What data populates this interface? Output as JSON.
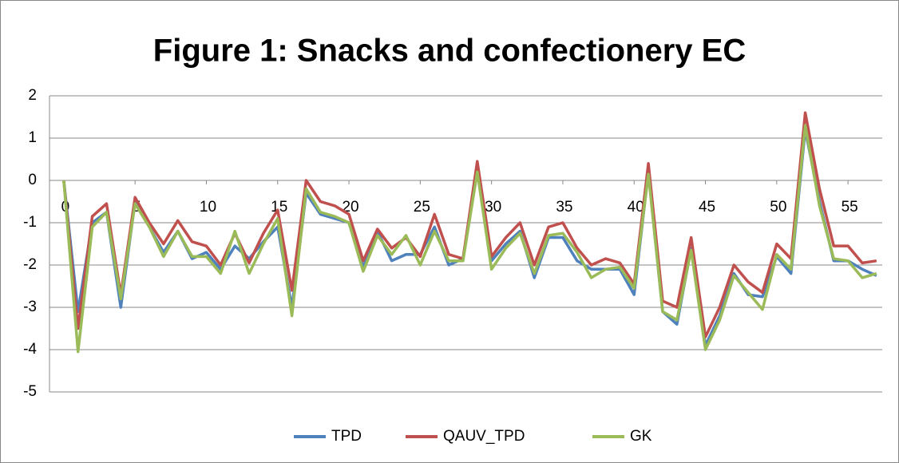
{
  "chart_data": {
    "type": "line",
    "title": "Figure 1: Snacks and confectionery EC",
    "x": [
      0,
      1,
      2,
      3,
      4,
      5,
      6,
      7,
      8,
      9,
      10,
      11,
      12,
      13,
      14,
      15,
      16,
      17,
      18,
      19,
      20,
      21,
      22,
      23,
      24,
      25,
      26,
      27,
      28,
      29,
      30,
      31,
      32,
      33,
      34,
      35,
      36,
      37,
      38,
      39,
      40,
      41,
      42,
      43,
      44,
      45,
      46,
      47,
      48,
      49,
      50,
      51,
      52,
      53,
      54,
      55,
      56,
      57
    ],
    "series": [
      {
        "name": "TPD",
        "color": "#4f81bd",
        "values": [
          0,
          -3.1,
          -1.0,
          -0.75,
          -3.0,
          -0.5,
          -1.1,
          -1.7,
          -1.2,
          -1.85,
          -1.7,
          -2.1,
          -1.55,
          -1.85,
          -1.45,
          -1.1,
          -3.0,
          -0.3,
          -0.8,
          -0.9,
          -1.0,
          -2.05,
          -1.2,
          -1.9,
          -1.75,
          -1.75,
          -1.1,
          -2.0,
          -1.85,
          0.3,
          -1.9,
          -1.5,
          -1.2,
          -2.3,
          -1.35,
          -1.35,
          -1.9,
          -2.1,
          -2.1,
          -2.1,
          -2.7,
          0.2,
          -3.1,
          -3.4,
          -1.6,
          -3.9,
          -3.2,
          -2.2,
          -2.7,
          -2.75,
          -1.8,
          -2.2,
          1.2,
          -0.5,
          -1.9,
          -1.9,
          -2.1,
          -2.25
        ]
      },
      {
        "name": "QAUV_TPD",
        "color": "#c0504d",
        "values": [
          0,
          -3.5,
          -0.85,
          -0.55,
          -2.7,
          -0.4,
          -1.0,
          -1.5,
          -0.95,
          -1.45,
          -1.55,
          -2.0,
          -1.25,
          -1.95,
          -1.25,
          -0.7,
          -2.6,
          0,
          -0.5,
          -0.6,
          -0.8,
          -1.9,
          -1.15,
          -1.6,
          -1.35,
          -1.8,
          -0.8,
          -1.75,
          -1.85,
          0.45,
          -1.8,
          -1.35,
          -1.0,
          -2.0,
          -1.1,
          -1.0,
          -1.6,
          -2.0,
          -1.85,
          -1.95,
          -2.45,
          0.4,
          -2.85,
          -3.0,
          -1.35,
          -3.7,
          -3.0,
          -2.0,
          -2.4,
          -2.65,
          -1.5,
          -1.85,
          1.6,
          -0.2,
          -1.55,
          -1.55,
          -1.95,
          -1.9
        ]
      },
      {
        "name": "GK",
        "color": "#9bbb59",
        "values": [
          0,
          -4.05,
          -1.1,
          -0.75,
          -2.8,
          -0.55,
          -1.1,
          -1.8,
          -1.2,
          -1.8,
          -1.8,
          -2.2,
          -1.2,
          -2.2,
          -1.5,
          -0.9,
          -3.2,
          -0.2,
          -0.75,
          -0.85,
          -1.0,
          -2.15,
          -1.3,
          -1.75,
          -1.3,
          -2.0,
          -1.2,
          -1.9,
          -1.9,
          0.2,
          -2.1,
          -1.6,
          -1.25,
          -2.2,
          -1.3,
          -1.25,
          -1.7,
          -2.3,
          -2.1,
          -2.05,
          -2.55,
          0.15,
          -3.1,
          -3.3,
          -1.65,
          -4.0,
          -3.3,
          -2.25,
          -2.65,
          -3.05,
          -1.75,
          -2.1,
          1.3,
          -0.6,
          -1.85,
          -1.9,
          -2.3,
          -2.2
        ]
      }
    ],
    "xlim": [
      -1,
      57.4
    ],
    "xticks": [
      0,
      5,
      10,
      15,
      20,
      25,
      30,
      35,
      40,
      45,
      50,
      55
    ],
    "ylim": [
      -5,
      2
    ],
    "yticks": [
      -5,
      -4,
      -3,
      -2,
      -1,
      0,
      1,
      2
    ],
    "grid": true,
    "legend": "bottom"
  }
}
